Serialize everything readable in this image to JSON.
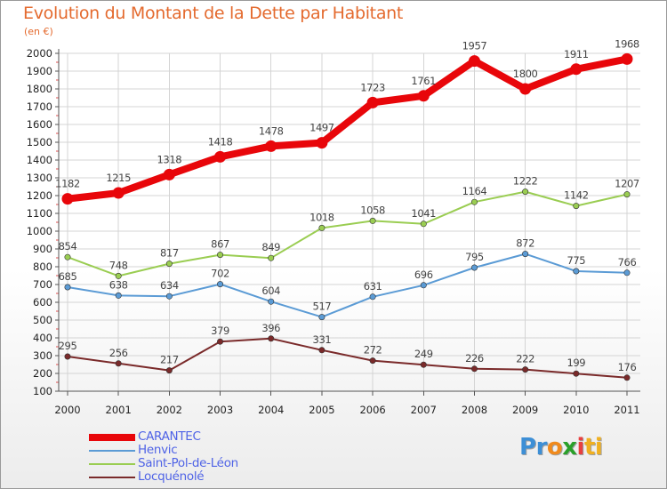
{
  "title": "Evolution du Montant de la Dette par Habitant",
  "subtitle": "(en €)",
  "colors": {
    "title": "#e46a2e",
    "legend_text": "#4f63e6",
    "grid": "#d4d4d4",
    "axis": "#555555",
    "label": "#444444"
  },
  "legend": [
    {
      "label": "CARANTEC",
      "color": "#e8060a",
      "stroke_width": 8
    },
    {
      "label": "Henvic",
      "color": "#5b9bd5",
      "stroke_width": 2
    },
    {
      "label": "Saint-Pol-de-Léon",
      "color": "#9acd52",
      "stroke_width": 2
    },
    {
      "label": "Locquénolé",
      "color": "#7a2a2a",
      "stroke_width": 2
    }
  ],
  "logo": {
    "letters": [
      "P",
      "r",
      "o",
      "x",
      "i",
      "t",
      "i"
    ],
    "colors": [
      "#3d8fd6",
      "#3d8fd6",
      "#f08a1c",
      "#2aa02a",
      "#e84040",
      "#f0b020",
      "#f0b020"
    ]
  },
  "chart_data": {
    "type": "line",
    "title": "Evolution du Montant de la Dette par Habitant",
    "subtitle": "(en €)",
    "x": [
      "2000",
      "2001",
      "2002",
      "2003",
      "2004",
      "2005",
      "2006",
      "2007",
      "2008",
      "2009",
      "2010",
      "2011"
    ],
    "ylim": [
      100,
      2000
    ],
    "yticks": [
      100,
      200,
      300,
      400,
      500,
      600,
      700,
      800,
      900,
      1000,
      1100,
      1200,
      1300,
      1400,
      1500,
      1600,
      1700,
      1800,
      1900,
      2000
    ],
    "grid": true,
    "legend_position": "bottom-left",
    "series": [
      {
        "name": "CARANTEC",
        "color": "#e8060a",
        "values": [
          1182,
          1215,
          1318,
          1418,
          1478,
          1497,
          1723,
          1761,
          1957,
          1800,
          1911,
          1968
        ]
      },
      {
        "name": "Henvic",
        "color": "#5b9bd5",
        "values": [
          685,
          638,
          634,
          702,
          604,
          517,
          631,
          696,
          795,
          872,
          775,
          766
        ]
      },
      {
        "name": "Saint-Pol-de-Léon",
        "color": "#9acd52",
        "values": [
          854,
          748,
          817,
          867,
          849,
          1018,
          1058,
          1041,
          1164,
          1222,
          1142,
          1207
        ]
      },
      {
        "name": "Locquénolé",
        "color": "#7a2a2a",
        "values": [
          295,
          256,
          217,
          379,
          396,
          331,
          272,
          249,
          226,
          222,
          199,
          176
        ]
      }
    ]
  }
}
